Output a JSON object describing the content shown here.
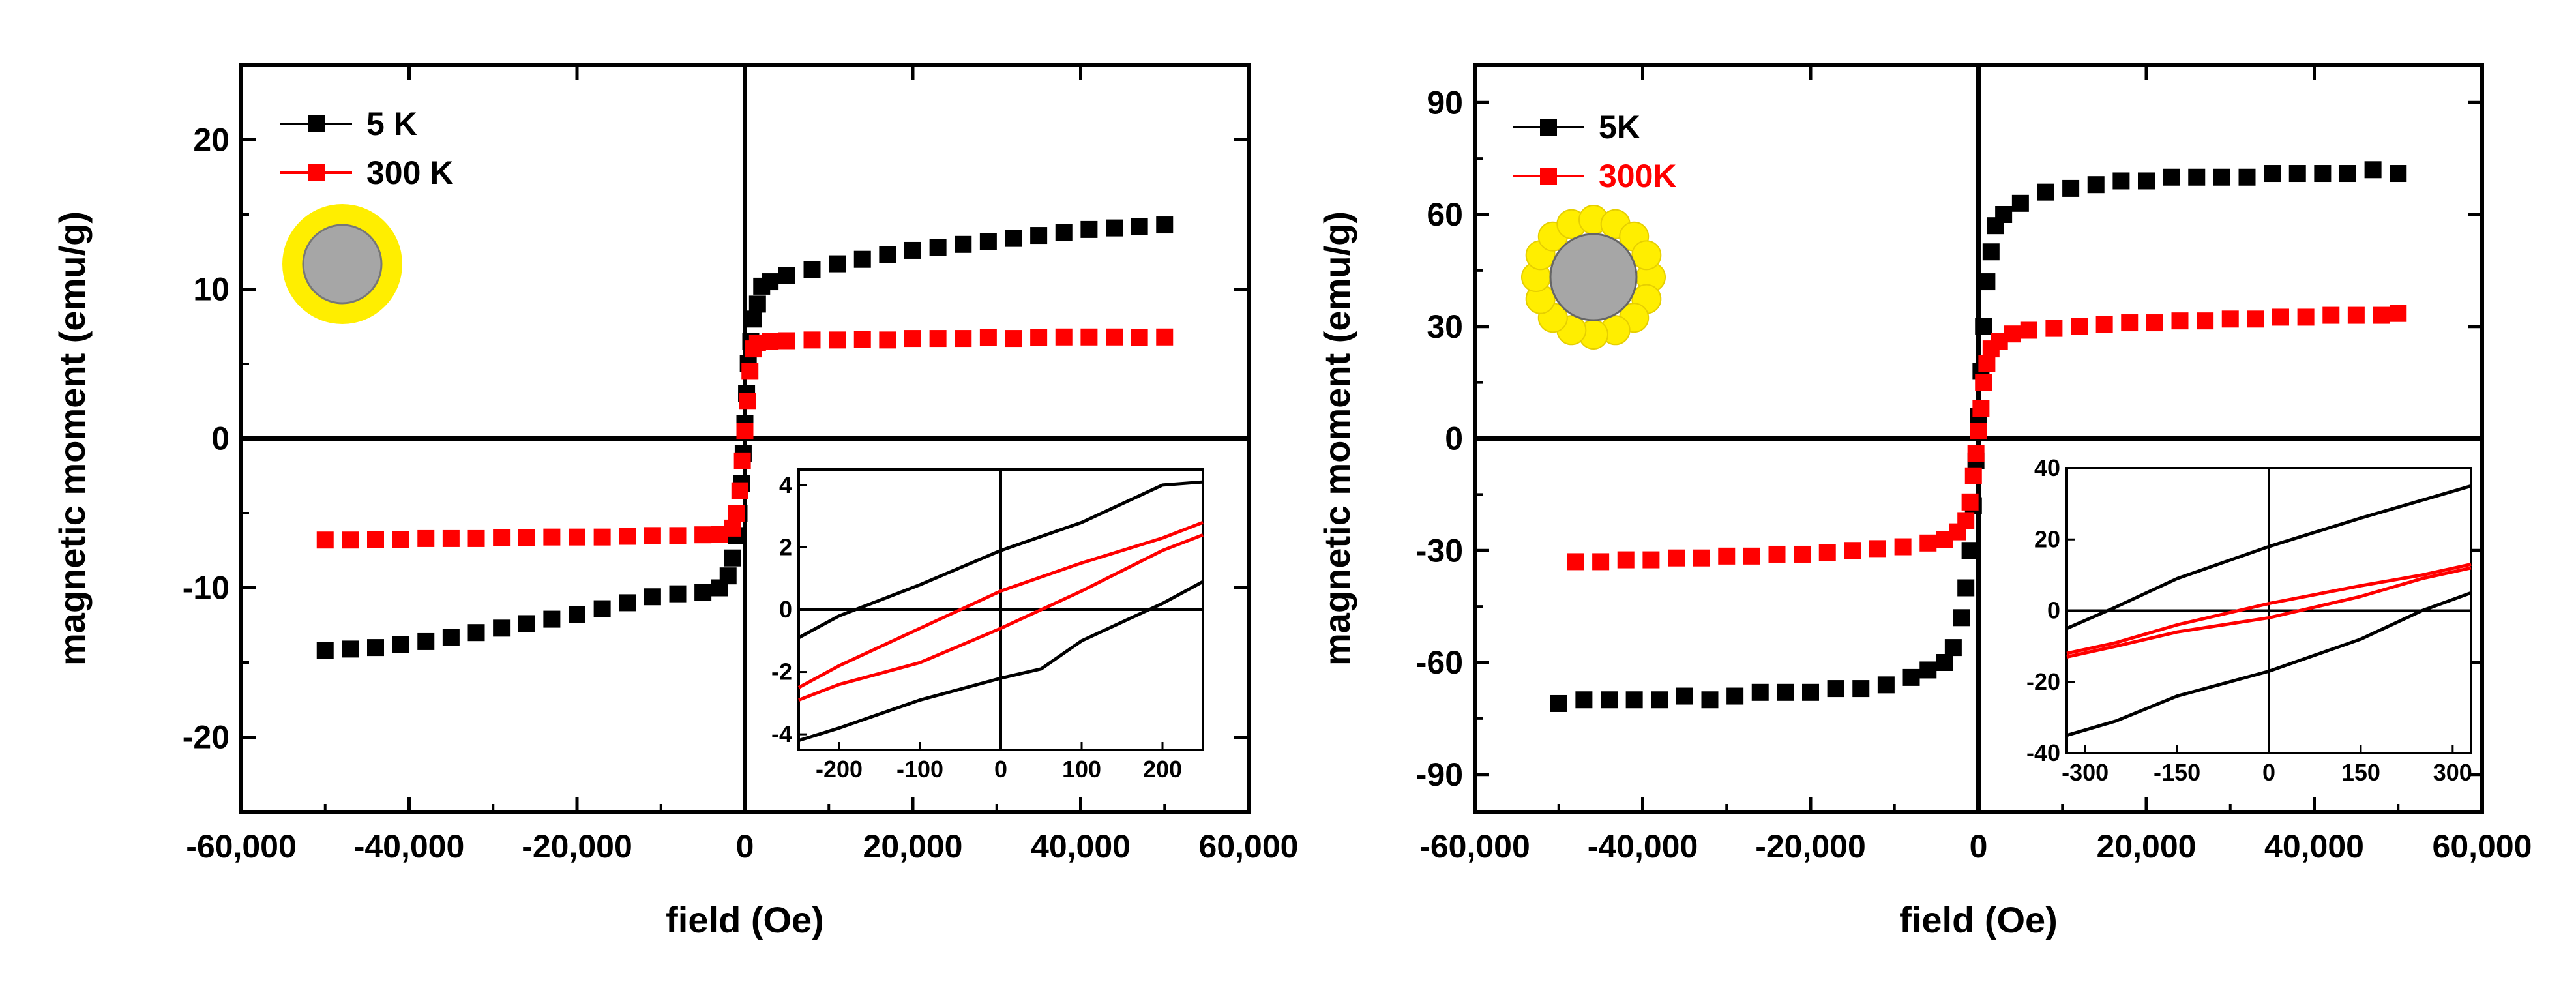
{
  "colors": {
    "series_5k": "#000000",
    "series_300k": "#ff0000",
    "shell": "#ffee00",
    "core": "#a6a6a6"
  },
  "chart_data": [
    {
      "type": "scatter",
      "xlabel": "field (Oe)",
      "ylabel": "magnetic moment (emu/g)",
      "xlim": [
        -60000,
        60000
      ],
      "ylim": [
        -25,
        25
      ],
      "xticks": [
        -60000,
        -40000,
        -20000,
        0,
        20000,
        40000,
        60000
      ],
      "xtick_labels": [
        "-60,000",
        "-40,000",
        "-20,000",
        "0",
        "20,000",
        "40,000",
        "60,000"
      ],
      "yticks": [
        -20,
        -10,
        0,
        10,
        20
      ],
      "ytick_labels": [
        "-20",
        "-10",
        "0",
        "10",
        "20"
      ],
      "legend_position": "top-left",
      "icon": "core-continuous-shell",
      "series": [
        {
          "name": "5 K",
          "color": "#000000",
          "x": [
            -50000,
            -47000,
            -44000,
            -41000,
            -38000,
            -35000,
            -32000,
            -29000,
            -26000,
            -23000,
            -20000,
            -17000,
            -14000,
            -11000,
            -8000,
            -5000,
            -3000,
            -2000,
            -1500,
            -1000,
            -700,
            -400,
            -200,
            0,
            200,
            400,
            700,
            1000,
            1500,
            2000,
            3000,
            5000,
            8000,
            11000,
            14000,
            17000,
            20000,
            23000,
            26000,
            29000,
            32000,
            35000,
            38000,
            41000,
            44000,
            47000,
            50000
          ],
          "y": [
            -14.2,
            -14.1,
            -14.0,
            -13.8,
            -13.6,
            -13.3,
            -13.0,
            -12.7,
            -12.4,
            -12.1,
            -11.8,
            -11.4,
            -11.0,
            -10.6,
            -10.4,
            -10.3,
            -10.0,
            -9.2,
            -8.0,
            -6.5,
            -5.0,
            -3.0,
            -1.0,
            1.0,
            3.0,
            5.0,
            6.5,
            8.0,
            9.0,
            10.2,
            10.5,
            10.9,
            11.3,
            11.7,
            12.0,
            12.3,
            12.6,
            12.8,
            13.0,
            13.2,
            13.4,
            13.6,
            13.8,
            14.0,
            14.1,
            14.2,
            14.3
          ]
        },
        {
          "name": "300 K",
          "color": "#ff0000",
          "x": [
            -50000,
            -47000,
            -44000,
            -41000,
            -38000,
            -35000,
            -32000,
            -29000,
            -26000,
            -23000,
            -20000,
            -17000,
            -14000,
            -11000,
            -8000,
            -5000,
            -3000,
            -1500,
            -1000,
            -600,
            -300,
            0,
            300,
            600,
            1000,
            1500,
            3000,
            5000,
            8000,
            11000,
            14000,
            17000,
            20000,
            23000,
            26000,
            29000,
            32000,
            35000,
            38000,
            41000,
            44000,
            47000,
            50000
          ],
          "y": [
            -6.8,
            -6.8,
            -6.75,
            -6.75,
            -6.7,
            -6.7,
            -6.7,
            -6.65,
            -6.65,
            -6.6,
            -6.6,
            -6.6,
            -6.55,
            -6.5,
            -6.5,
            -6.45,
            -6.4,
            -6.0,
            -5.0,
            -3.5,
            -1.5,
            0.5,
            2.5,
            4.5,
            6.0,
            6.4,
            6.5,
            6.55,
            6.6,
            6.6,
            6.65,
            6.6,
            6.7,
            6.7,
            6.7,
            6.75,
            6.7,
            6.75,
            6.8,
            6.8,
            6.8,
            6.75,
            6.8
          ]
        }
      ],
      "inset": {
        "xlim": [
          -250,
          250
        ],
        "ylim": [
          -4.5,
          4.5
        ],
        "xticks": [
          -200,
          -100,
          0,
          100,
          200
        ],
        "xtick_labels": [
          "-200",
          "-100",
          "0",
          "100",
          "200"
        ],
        "yticks": [
          -4,
          -2,
          0,
          2,
          4
        ],
        "ytick_labels": [
          "-4",
          "-2",
          "0",
          "2",
          "4"
        ],
        "series": [
          {
            "name": "5 K upper",
            "color": "#000000",
            "x": [
              -250,
              -200,
              -100,
              0,
              100,
              200,
              250
            ],
            "y": [
              -0.9,
              -0.2,
              0.8,
              1.9,
              2.8,
              4.0,
              4.1
            ]
          },
          {
            "name": "5 K lower",
            "color": "#000000",
            "x": [
              -250,
              -200,
              -100,
              0,
              50,
              100,
              200,
              250
            ],
            "y": [
              -4.2,
              -3.8,
              -2.9,
              -2.2,
              -1.9,
              -1.0,
              0.2,
              0.9
            ]
          },
          {
            "name": "300 K upper",
            "color": "#ff0000",
            "x": [
              -250,
              -200,
              -100,
              0,
              100,
              200,
              250
            ],
            "y": [
              -2.5,
              -1.8,
              -0.6,
              0.6,
              1.5,
              2.3,
              2.8
            ]
          },
          {
            "name": "300 K lower",
            "color": "#ff0000",
            "x": [
              -250,
              -200,
              -100,
              0,
              100,
              200,
              250
            ],
            "y": [
              -2.9,
              -2.4,
              -1.7,
              -0.6,
              0.6,
              1.9,
              2.4
            ]
          }
        ]
      }
    },
    {
      "type": "scatter",
      "xlabel": "field (Oe)",
      "ylabel": "magnetic moment (emu/g)",
      "xlim": [
        -60000,
        60000
      ],
      "ylim": [
        -100,
        100
      ],
      "xticks": [
        -60000,
        -40000,
        -20000,
        0,
        20000,
        40000,
        60000
      ],
      "xtick_labels": [
        "-60,000",
        "-40,000",
        "-20,000",
        "0",
        "20,000",
        "40,000",
        "60,000"
      ],
      "yticks": [
        -90,
        -60,
        -30,
        0,
        30,
        60,
        90
      ],
      "ytick_labels": [
        "-90",
        "-60",
        "-30",
        "0",
        "30",
        "60",
        "90"
      ],
      "legend_position": "top-left",
      "icon": "core-dotted-shell",
      "series": [
        {
          "name": "5K",
          "color": "#000000",
          "x": [
            -50000,
            -47000,
            -44000,
            -41000,
            -38000,
            -35000,
            -32000,
            -29000,
            -26000,
            -23000,
            -20000,
            -17000,
            -14000,
            -11000,
            -8000,
            -6000,
            -4000,
            -3000,
            -2000,
            -1500,
            -1000,
            -600,
            -300,
            0,
            300,
            600,
            1000,
            1500,
            2000,
            3000,
            5000,
            8000,
            11000,
            14000,
            17000,
            20000,
            23000,
            26000,
            29000,
            32000,
            35000,
            38000,
            41000,
            44000,
            47000,
            50000
          ],
          "y": [
            -71,
            -70,
            -70,
            -70,
            -70,
            -69,
            -70,
            -69,
            -68,
            -68,
            -68,
            -67,
            -67,
            -66,
            -64,
            -62,
            -60,
            -56,
            -48,
            -40,
            -30,
            -18,
            -6,
            6,
            18,
            30,
            42,
            50,
            57,
            60,
            63,
            66,
            67,
            68,
            69,
            69,
            70,
            70,
            70,
            70,
            71,
            71,
            71,
            71,
            72,
            71
          ]
        },
        {
          "name": "300K",
          "color": "#ff0000",
          "x": [
            -48000,
            -45000,
            -42000,
            -39000,
            -36000,
            -33000,
            -30000,
            -27000,
            -24000,
            -21000,
            -18000,
            -15000,
            -12000,
            -9000,
            -6000,
            -4000,
            -2500,
            -1500,
            -1000,
            -600,
            -300,
            0,
            300,
            600,
            1000,
            1500,
            2500,
            4000,
            6000,
            9000,
            12000,
            15000,
            18000,
            21000,
            24000,
            27000,
            30000,
            33000,
            36000,
            39000,
            42000,
            45000,
            48000,
            50000
          ],
          "y": [
            -33,
            -33,
            -32.5,
            -32.5,
            -32,
            -32,
            -31.5,
            -31.5,
            -31,
            -31,
            -30.5,
            -30,
            -29.5,
            -29,
            -28,
            -27,
            -25,
            -22,
            -17,
            -10,
            -4,
            2,
            8,
            15,
            20,
            24,
            26,
            28,
            29,
            29.5,
            30,
            30.5,
            31,
            31,
            31.5,
            31.5,
            32,
            32,
            32.5,
            32.5,
            33,
            33,
            33,
            33.5
          ]
        }
      ],
      "inset": {
        "xlim": [
          -330,
          330
        ],
        "ylim": [
          -40,
          40
        ],
        "xticks": [
          -300,
          -150,
          0,
          150,
          300
        ],
        "xtick_labels": [
          "-300",
          "-150",
          "0",
          "150",
          "300"
        ],
        "yticks": [
          -40,
          -20,
          0,
          20,
          40
        ],
        "ytick_labels": [
          "-40",
          "-20",
          "0",
          "20",
          "40"
        ],
        "series": [
          {
            "name": "5K upper",
            "color": "#000000",
            "x": [
              -330,
              -250,
              -150,
              0,
              150,
              250,
              330
            ],
            "y": [
              -5,
              1,
              9,
              18,
              26,
              31,
              35
            ]
          },
          {
            "name": "5K lower",
            "color": "#000000",
            "x": [
              -330,
              -250,
              -150,
              0,
              150,
              250,
              330
            ],
            "y": [
              -35,
              -31,
              -24,
              -17,
              -8,
              0,
              5
            ]
          },
          {
            "name": "300K upper",
            "color": "#ff0000",
            "x": [
              -330,
              -250,
              -150,
              0,
              150,
              250,
              330
            ],
            "y": [
              -12,
              -9,
              -4,
              2,
              7,
              10,
              13
            ]
          },
          {
            "name": "300K lower",
            "color": "#ff0000",
            "x": [
              -330,
              -250,
              -150,
              0,
              150,
              250,
              330
            ],
            "y": [
              -13,
              -10,
              -6,
              -2,
              4,
              9,
              12
            ]
          }
        ]
      }
    }
  ]
}
